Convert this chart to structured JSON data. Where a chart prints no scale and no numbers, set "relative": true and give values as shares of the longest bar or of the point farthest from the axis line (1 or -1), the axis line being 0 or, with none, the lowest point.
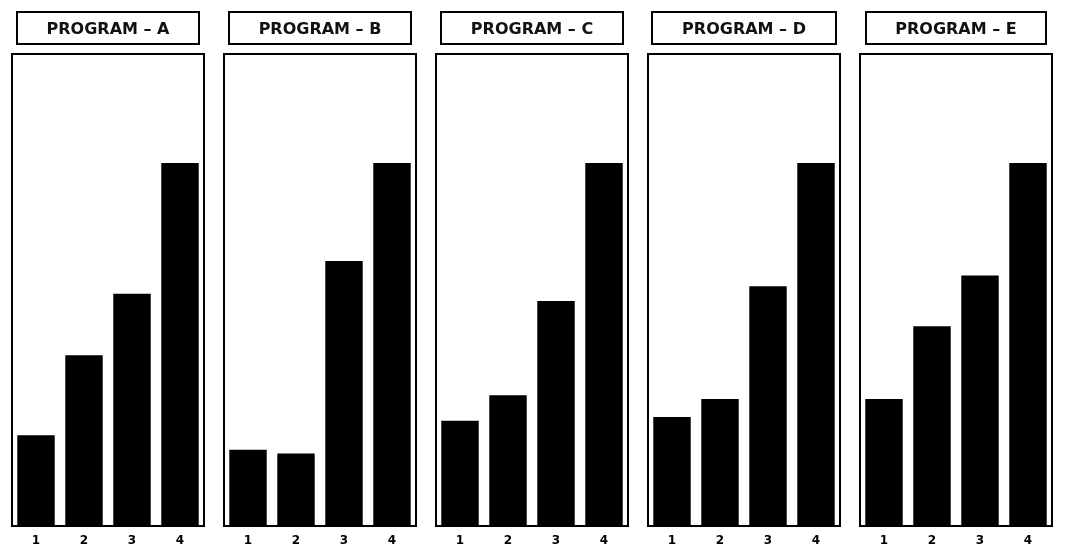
{
  "chart_data": [
    {
      "type": "bar",
      "title": "PROGRAM – A",
      "categories": [
        "1",
        "2",
        "3",
        "4"
      ],
      "values": [
        0.25,
        0.47,
        0.64,
        1
      ],
      "color": "#000000",
      "relative": true
    },
    {
      "type": "bar",
      "title": "PROGRAM – B",
      "categories": [
        "1",
        "2",
        "3",
        "4"
      ],
      "values": [
        0.21,
        0.2,
        0.73,
        1
      ],
      "color": "#000000",
      "relative": true
    },
    {
      "type": "bar",
      "title": "PROGRAM – C",
      "categories": [
        "1",
        "2",
        "3",
        "4"
      ],
      "values": [
        0.29,
        0.36,
        0.62,
        1
      ],
      "color": "#000000",
      "relative": true
    },
    {
      "type": "bar",
      "title": "PROGRAM – D",
      "categories": [
        "1",
        "2",
        "3",
        "4"
      ],
      "values": [
        0.3,
        0.35,
        0.66,
        1
      ],
      "color": "#000000",
      "relative": true
    },
    {
      "type": "bar",
      "title": "PROGRAM – E",
      "categories": [
        "1",
        "2",
        "3",
        "4"
      ],
      "values": [
        0.35,
        0.55,
        0.69,
        1
      ],
      "color": "#000000",
      "relative": true
    }
  ]
}
